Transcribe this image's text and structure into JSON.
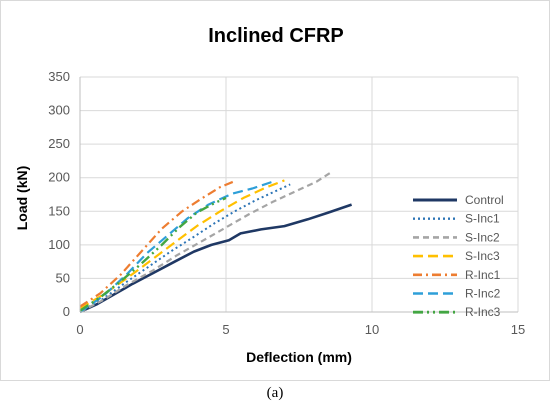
{
  "caption": "(a)",
  "chart_data": {
    "type": "line",
    "title": "Inclined CFRP",
    "xlabel": "Deflection (mm)",
    "ylabel": "Load (kN)",
    "xlim": [
      0,
      15
    ],
    "ylim": [
      0,
      350
    ],
    "xticks": [
      0,
      5,
      10,
      15
    ],
    "yticks": [
      0,
      50,
      100,
      150,
      200,
      250,
      300,
      350
    ],
    "grid": true,
    "legend_position": "right",
    "series": [
      {
        "name": "Control",
        "color": "#1f3864",
        "dash": "solid",
        "width": 2.6,
        "points": [
          [
            0,
            0
          ],
          [
            0.6,
            12
          ],
          [
            1.2,
            27
          ],
          [
            1.8,
            42
          ],
          [
            2.5,
            58
          ],
          [
            3.2,
            74
          ],
          [
            3.9,
            90
          ],
          [
            4.5,
            100
          ],
          [
            5.1,
            107
          ],
          [
            5.5,
            117
          ],
          [
            6.2,
            123
          ],
          [
            7,
            128
          ],
          [
            7.8,
            138
          ],
          [
            8.5,
            148
          ],
          [
            9.3,
            160
          ]
        ]
      },
      {
        "name": "S-Inc1",
        "color": "#2e75b6",
        "dash": "dot",
        "width": 2,
        "points": [
          [
            0,
            0
          ],
          [
            0.8,
            20
          ],
          [
            1.5,
            42
          ],
          [
            2.3,
            66
          ],
          [
            3.1,
            90
          ],
          [
            3.9,
            112
          ],
          [
            4.6,
            132
          ],
          [
            5.3,
            150
          ],
          [
            6,
            166
          ],
          [
            6.7,
            180
          ],
          [
            7.2,
            190
          ]
        ]
      },
      {
        "name": "S-Inc2",
        "color": "#a5a5a5",
        "dash": "dash",
        "width": 2.2,
        "points": [
          [
            0,
            0
          ],
          [
            0.8,
            18
          ],
          [
            1.6,
            40
          ],
          [
            2.5,
            62
          ],
          [
            3.3,
            84
          ],
          [
            4.2,
            106
          ],
          [
            5,
            126
          ],
          [
            5.8,
            146
          ],
          [
            6.6,
            164
          ],
          [
            7.4,
            180
          ],
          [
            8.1,
            194
          ],
          [
            8.6,
            208
          ]
        ]
      },
      {
        "name": "S-Inc3",
        "color": "#ffc000",
        "dash": "longdash",
        "width": 2.2,
        "points": [
          [
            0,
            5
          ],
          [
            0.8,
            26
          ],
          [
            1.6,
            50
          ],
          [
            2.4,
            76
          ],
          [
            3.2,
            102
          ],
          [
            4,
            128
          ],
          [
            4.8,
            150
          ],
          [
            5.6,
            170
          ],
          [
            6.4,
            186
          ],
          [
            7,
            196
          ]
        ]
      },
      {
        "name": "R-Inc1",
        "color": "#ed7d31",
        "dash": "dashdot",
        "width": 2.2,
        "points": [
          [
            0,
            8
          ],
          [
            0.7,
            28
          ],
          [
            1.4,
            56
          ],
          [
            2.1,
            90
          ],
          [
            2.8,
            124
          ],
          [
            3.5,
            150
          ],
          [
            4.2,
            170
          ],
          [
            4.8,
            186
          ],
          [
            5.3,
            195
          ]
        ]
      },
      {
        "name": "R-Inc2",
        "color": "#2e9fd8",
        "dash": "longdash",
        "width": 2.2,
        "points": [
          [
            0,
            0
          ],
          [
            0.8,
            24
          ],
          [
            1.6,
            56
          ],
          [
            2.3,
            88
          ],
          [
            3,
            114
          ],
          [
            3.7,
            140
          ],
          [
            4.4,
            160
          ],
          [
            5.2,
            176
          ],
          [
            5.9,
            184
          ],
          [
            6.6,
            194
          ]
        ]
      },
      {
        "name": "R-Inc3",
        "color": "#43a643",
        "dash": "dashdotdot",
        "width": 2.4,
        "points": [
          [
            0,
            2
          ],
          [
            0.7,
            22
          ],
          [
            1.4,
            46
          ],
          [
            2.1,
            72
          ],
          [
            2.8,
            100
          ],
          [
            3.4,
            126
          ],
          [
            4,
            148
          ],
          [
            4.6,
            162
          ],
          [
            5,
            170
          ]
        ]
      }
    ]
  }
}
